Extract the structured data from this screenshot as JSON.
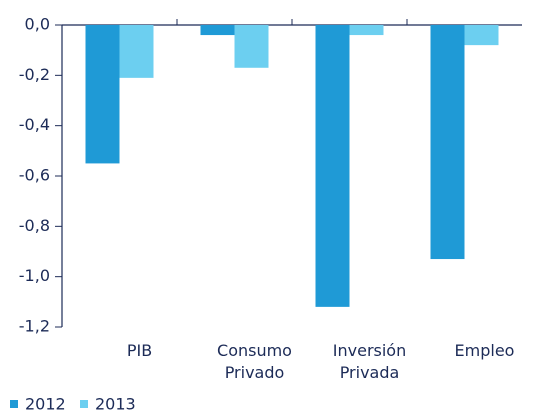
{
  "chart_data": {
    "type": "bar",
    "categories": [
      "PIB",
      "Consumo Privado",
      "Inversión Privada",
      "Empleo"
    ],
    "series": [
      {
        "name": "2012",
        "color": "#1f9ad6",
        "values": [
          -0.55,
          -0.04,
          -1.12,
          -0.93
        ]
      },
      {
        "name": "2013",
        "color": "#6ccff0",
        "values": [
          -0.21,
          -0.17,
          -0.04,
          -0.08
        ]
      }
    ],
    "ylim": [
      -1.2,
      0
    ],
    "yticks": [
      {
        "value": 0,
        "label": "0,0"
      },
      {
        "value": -0.2,
        "label": "-0,2"
      },
      {
        "value": -0.4,
        "label": "-0,4"
      },
      {
        "value": -0.6,
        "label": "-0,6"
      },
      {
        "value": -0.8,
        "label": "-0,8"
      },
      {
        "value": -1.0,
        "label": "-1,0"
      },
      {
        "value": -1.2,
        "label": "-1,2"
      }
    ]
  }
}
